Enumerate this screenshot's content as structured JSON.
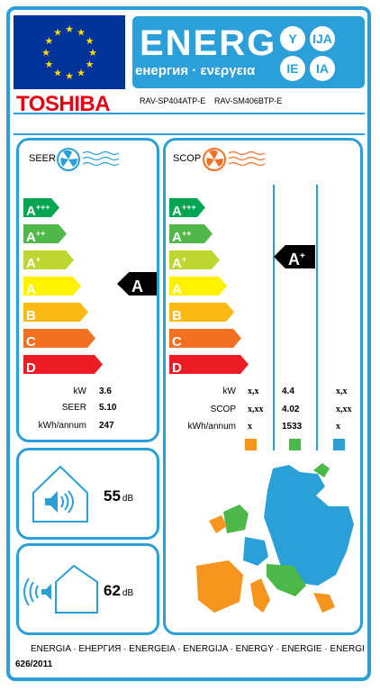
{
  "header": {
    "energy_word": "ENERG",
    "energy_subtitle": "енергия · ενεργεια",
    "lang_badges": [
      "Y",
      "IJA",
      "IE",
      "IA"
    ],
    "brand": "TOSHIBA",
    "model_indoor": "RAV-SP404ATP-E",
    "model_outdoor": "RAV-SM406BTP-E"
  },
  "classes": [
    {
      "letter": "A",
      "plus": "+++",
      "color": "#00a651"
    },
    {
      "letter": "A",
      "plus": "++",
      "color": "#50b848"
    },
    {
      "letter": "A",
      "plus": "+",
      "color": "#bed630"
    },
    {
      "letter": "A",
      "plus": "",
      "color": "#fff200"
    },
    {
      "letter": "B",
      "plus": "",
      "color": "#fdb913"
    },
    {
      "letter": "C",
      "plus": "",
      "color": "#f37021"
    },
    {
      "letter": "D",
      "plus": "",
      "color": "#ed1c24"
    }
  ],
  "cooling": {
    "title": "SEER",
    "rating": "A",
    "rating_plus": "",
    "labels": {
      "kw": "kW",
      "seer": "SEER",
      "kwh": "kWh/annum"
    },
    "values": {
      "kw": "3.6",
      "seer": "5.10",
      "kwh": "247"
    }
  },
  "heating": {
    "title": "SCOP",
    "rating": "A",
    "rating_plus": "+",
    "labels": {
      "kw": "kW",
      "scop": "SCOP",
      "kwh": "kWh/annum"
    },
    "cold": {
      "kw": "x,x",
      "scop": "x,xx",
      "kwh": "x"
    },
    "average": {
      "kw": "4.4",
      "scop": "4.02",
      "kwh": "1533"
    },
    "warm": {
      "kw": "x,x",
      "scop": "x,xx",
      "kwh": "x"
    },
    "zone_colors": {
      "cold": "#f7941d",
      "average": "#4cb848",
      "warm": "#2a9fd8"
    }
  },
  "noise": {
    "indoor_value": "55",
    "outdoor_value": "62",
    "unit": "dB"
  },
  "footer": {
    "languages": "ENERGIA · ЕНЕРГИЯ · ENERGEIA · ENERGIJA · ENERGY · ENERGIE · ENERGI",
    "regulation": "626/2011"
  }
}
